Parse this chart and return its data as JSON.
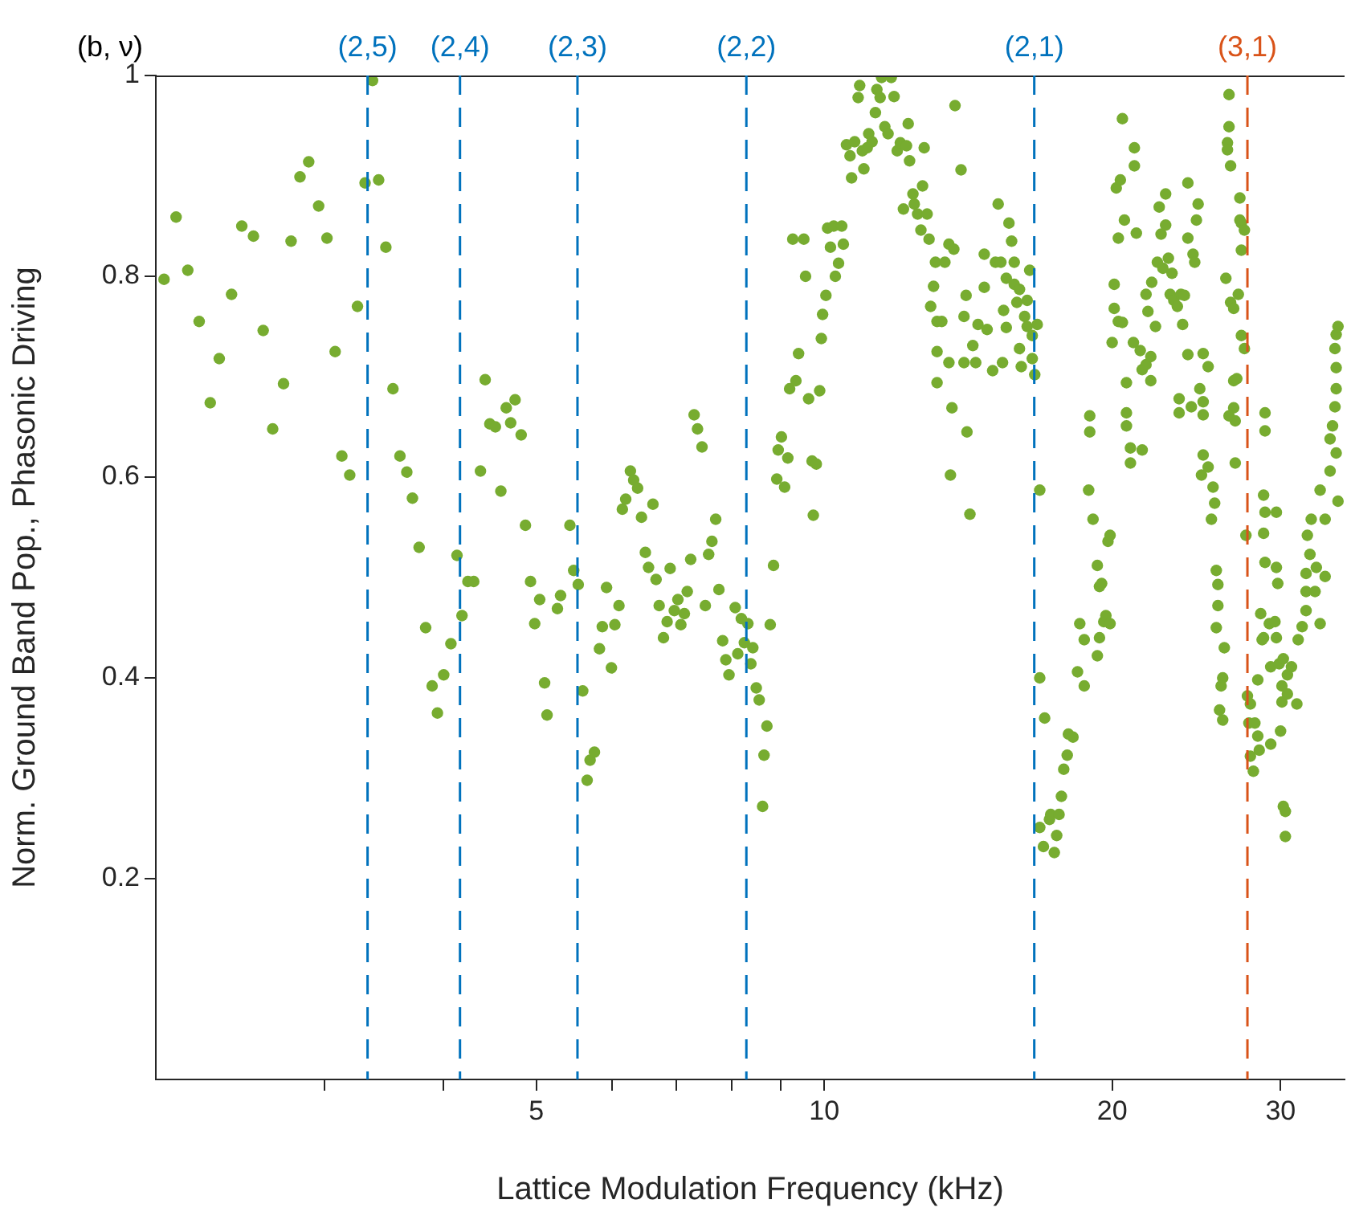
{
  "chart_data": {
    "type": "scatter",
    "xlabel": "Lattice Modulation Frequency (kHz)",
    "ylabel": "Norm. Ground Band Pop., Phasonic Driving",
    "annotations": [
      "(b, ν)",
      {
        "text": "(2,5)",
        "x": 3.33,
        "y": 1
      },
      {
        "text": "(2,4)",
        "x": 4.16,
        "y": 1
      },
      {
        "text": "(2,3)",
        "x": 5.52,
        "y": 1
      },
      {
        "text": "(2,2)",
        "x": 8.29,
        "y": 1
      },
      {
        "text": "(2,1)",
        "x": 16.58,
        "y": 1
      },
      {
        "text": "(3,1)",
        "x": 27.7,
        "y": 1
      }
    ],
    "log": "x",
    "grid": false,
    "legend": false,
    "marker": "circle",
    "color": "#77ac30",
    "xlim": [
      2,
      35
    ],
    "ylim": [
      0,
      1
    ],
    "xticks": [
      {
        "value": 3,
        "label": null
      },
      {
        "value": 4,
        "label": null
      },
      5,
      {
        "value": 6,
        "label": null
      },
      {
        "value": 7,
        "label": null
      },
      {
        "value": 8,
        "label": null
      },
      {
        "value": 9,
        "label": null
      },
      10,
      20,
      30
    ],
    "yticks": [
      0.2,
      0.4,
      0.6,
      0.8,
      1
    ],
    "ref_lines": [
      {
        "axis": "x",
        "value": 3.33,
        "color": "#0072bd",
        "line_style": "dashed"
      },
      {
        "axis": "x",
        "value": 4.16,
        "color": "#0072bd",
        "line_style": "dashed"
      },
      {
        "axis": "x",
        "value": 5.52,
        "color": "#0072bd",
        "line_style": "dashed"
      },
      {
        "axis": "x",
        "value": 8.29,
        "color": "#0072bd",
        "line_style": "dashed"
      },
      {
        "axis": "x",
        "value": 16.58,
        "color": "#0072bd",
        "line_style": "dashed"
      },
      {
        "axis": "x",
        "value": 27.7,
        "color": "#d95319",
        "line_style": "dashed"
      }
    ],
    "x": [
      2.04,
      2.1,
      2.16,
      2.22,
      2.28,
      2.33,
      2.4,
      2.46,
      2.53,
      2.59,
      2.65,
      2.72,
      2.77,
      2.83,
      2.89,
      2.96,
      3.02,
      3.08,
      3.13,
      3.19,
      3.25,
      3.31,
      3.37,
      3.42,
      3.48,
      3.54,
      3.6,
      3.66,
      3.71,
      3.77,
      3.83,
      3.89,
      3.94,
      4.0,
      4.07,
      4.13,
      4.18,
      4.24,
      4.3,
      4.37,
      4.42,
      4.47,
      4.53,
      4.59,
      4.65,
      4.7,
      4.75,
      4.82,
      4.87,
      4.93,
      4.98,
      5.04,
      5.1,
      5.13,
      5.26,
      5.3,
      5.42,
      5.47,
      5.53,
      5.59,
      5.65,
      5.69,
      5.75,
      5.82,
      5.86,
      5.92,
      5.99,
      6.04,
      6.1,
      6.15,
      6.2,
      6.27,
      6.32,
      6.38,
      6.44,
      6.5,
      6.55,
      6.62,
      6.67,
      6.72,
      6.79,
      6.85,
      6.9,
      6.97,
      7.03,
      7.08,
      7.14,
      7.19,
      7.25,
      7.31,
      7.37,
      7.45,
      7.51,
      7.57,
      7.63,
      7.7,
      7.76,
      7.83,
      7.89,
      7.95,
      8.07,
      8.12,
      8.19,
      8.25,
      8.32,
      8.38,
      8.42,
      8.49,
      8.55,
      8.62,
      8.65,
      8.71,
      8.78,
      8.85,
      8.92,
      8.95,
      9.02,
      9.09,
      9.16,
      9.2,
      9.27,
      9.34,
      9.4,
      9.52,
      9.56,
      9.63,
      9.71,
      9.74,
      9.81,
      9.89,
      9.93,
      9.96,
      10.04,
      10.08,
      10.15,
      10.23,
      10.27,
      10.35,
      10.43,
      10.47,
      10.55,
      10.64,
      10.68,
      10.76,
      10.85,
      10.89,
      10.96,
      11.0,
      11.09,
      11.13,
      11.22,
      11.31,
      11.35,
      11.44,
      11.48,
      11.57,
      11.66,
      11.75,
      11.83,
      11.92,
      12.01,
      12.1,
      12.19,
      12.24,
      12.28,
      12.38,
      12.42,
      12.52,
      12.62,
      12.67,
      12.72,
      12.81,
      12.87,
      12.92,
      13.01,
      13.07,
      13.12,
      13.12,
      13.12,
      13.7,
      13.9,
      13.37,
      13.5,
      13.66,
      13.27,
      13.5,
      13.6,
      13.55,
      14.1,
      14.2,
      14.0,
      14.07,
      14.0,
      14.3,
      14.4,
      14.48,
      14.7,
      14.7,
      14.8,
      15.0,
      15.1,
      15.2,
      15.3,
      15.36,
      15.4,
      15.5,
      15.5,
      15.6,
      15.7,
      15.8,
      15.8,
      15.9,
      16.0,
      16.0,
      16.07,
      16.2,
      16.3,
      16.3,
      16.4,
      16.5,
      16.5,
      16.6,
      16.7,
      16.8,
      16.8,
      17.0,
      16.8,
      16.95,
      17.2,
      17.25,
      17.4,
      17.5,
      17.6,
      17.7,
      17.8,
      17.95,
      18.0,
      18.2,
      18.4,
      18.5,
      18.7,
      18.7,
      18.95,
      18.95,
      18.9,
      19.1,
      19.3,
      19.4,
      19.5,
      19.4,
      19.3,
      19.6,
      19.7,
      19.8,
      19.9,
      19.9,
      20.0,
      20.1,
      20.1,
      20.2,
      20.3,
      20.4,
      20.5,
      20.6,
      20.3,
      20.5,
      20.7,
      20.7,
      20.7,
      20.9,
      20.9,
      21.05,
      21.1,
      21.1,
      21.2,
      21.4,
      21.5,
      21.5,
      21.7,
      21.7,
      21.8,
      21.95,
      21.95,
      22.0,
      22.2,
      22.3,
      22.4,
      22.5,
      22.6,
      22.75,
      22.75,
      22.9,
      23.1,
      23.0,
      23.2,
      23.4,
      23.5,
      23.5,
      23.6,
      23.7,
      23.8,
      24.0,
      24.0,
      24.0,
      24.2,
      24.3,
      24.4,
      24.6,
      24.5,
      24.7,
      24.9,
      24.9,
      24.9,
      24.9,
      24.8,
      25.2,
      25.2,
      25.5,
      25.6,
      25.4,
      25.7,
      25.8,
      25.8,
      25.7,
      26.2,
      26.1,
      26.0,
      25.9,
      26.1,
      26.3,
      26.6,
      26.8,
      27.1,
      27.3,
      27.5,
      26.5,
      26.5,
      26.4,
      26.4,
      26.6,
      27.2,
      27.2,
      27.3,
      27.5,
      27.3,
      26.8,
      27.0,
      26.8,
      26.9,
      26.5,
      26.9,
      27.6,
      27.7,
      27.8,
      27.9,
      28.2,
      28.4,
      28.5,
      28.1,
      27.9,
      28.4,
      28.8,
      28.7,
      28.6,
      29.2,
      28.9,
      28.8,
      28.9,
      28.8,
      29.7,
      29.7,
      29.8,
      28.9,
      28.9,
      29.6,
      29.7,
      29.3,
      29.9,
      30.2,
      30.5,
      30.1,
      30.1,
      30.5,
      30.8,
      31.2,
      30.0,
      29.3,
      30.2,
      30.35,
      30.35,
      31.3,
      31.6,
      31.9,
      31.9,
      31.9,
      32.2,
      32.0,
      32.3,
      32.6,
      32.7,
      33.0,
      33.0,
      33.4,
      33.4,
      33.8,
      33.8,
      34.0,
      34.2,
      34.3,
      34.2,
      34.3,
      34.3,
      34.3,
      34.45,
      34.45
    ],
    "values": [
      0.797,
      0.859,
      0.806,
      0.755,
      0.674,
      0.718,
      0.782,
      0.85,
      0.84,
      0.746,
      0.648,
      0.693,
      0.835,
      0.899,
      0.914,
      0.87,
      0.838,
      0.725,
      0.621,
      0.602,
      0.77,
      0.893,
      0.995,
      0.896,
      0.829,
      0.688,
      0.621,
      0.605,
      0.579,
      0.53,
      0.45,
      0.392,
      0.365,
      0.403,
      0.434,
      0.522,
      0.462,
      0.496,
      0.496,
      0.606,
      0.697,
      0.653,
      0.65,
      0.586,
      0.669,
      0.654,
      0.677,
      0.642,
      0.552,
      0.496,
      0.454,
      0.478,
      0.395,
      0.363,
      0.469,
      0.482,
      0.552,
      0.507,
      0.493,
      0.387,
      0.298,
      0.318,
      0.326,
      0.429,
      0.451,
      0.49,
      0.41,
      0.453,
      0.472,
      0.568,
      0.578,
      0.606,
      0.597,
      0.589,
      0.56,
      0.525,
      0.51,
      0.573,
      0.498,
      0.472,
      0.44,
      0.456,
      0.509,
      0.467,
      0.478,
      0.453,
      0.464,
      0.486,
      0.518,
      0.662,
      0.648,
      0.63,
      0.472,
      0.523,
      0.536,
      0.558,
      0.488,
      0.437,
      0.418,
      0.403,
      0.47,
      0.424,
      0.459,
      0.435,
      0.454,
      0.414,
      0.43,
      0.39,
      0.378,
      0.272,
      0.323,
      0.352,
      0.453,
      0.512,
      0.598,
      0.627,
      0.64,
      0.59,
      0.619,
      0.688,
      0.837,
      0.696,
      0.723,
      0.837,
      0.8,
      0.678,
      0.616,
      0.562,
      0.613,
      0.686,
      0.738,
      0.762,
      0.781,
      0.848,
      0.829,
      0.85,
      0.8,
      0.813,
      0.85,
      0.832,
      0.931,
      0.92,
      0.898,
      0.934,
      0.978,
      0.99,
      0.925,
      0.907,
      0.928,
      0.942,
      0.934,
      0.963,
      0.986,
      0.978,
      0.998,
      0.949,
      0.942,
      0.998,
      0.979,
      0.925,
      0.933,
      0.867,
      0.93,
      0.952,
      0.915,
      0.882,
      0.872,
      0.862,
      0.846,
      0.89,
      0.928,
      0.862,
      0.837,
      0.77,
      0.79,
      0.814,
      0.755,
      0.725,
      0.694,
      0.97,
      0.906,
      0.814,
      0.832,
      0.827,
      0.755,
      0.714,
      0.669,
      0.602,
      0.645,
      0.563,
      0.76,
      0.781,
      0.714,
      0.731,
      0.714,
      0.752,
      0.789,
      0.822,
      0.747,
      0.706,
      0.814,
      0.872,
      0.814,
      0.714,
      0.766,
      0.749,
      0.798,
      0.853,
      0.835,
      0.792,
      0.814,
      0.774,
      0.787,
      0.728,
      0.71,
      0.76,
      0.75,
      0.776,
      0.806,
      0.741,
      0.718,
      0.702,
      0.752,
      0.587,
      0.4,
      0.36,
      0.251,
      0.232,
      0.259,
      0.264,
      0.226,
      0.243,
      0.264,
      0.282,
      0.309,
      0.323,
      0.344,
      0.341,
      0.406,
      0.454,
      0.392,
      0.438,
      0.661,
      0.645,
      0.587,
      0.558,
      0.512,
      0.491,
      0.494,
      0.44,
      0.422,
      0.456,
      0.462,
      0.536,
      0.454,
      0.542,
      0.734,
      0.792,
      0.768,
      0.888,
      0.838,
      0.896,
      0.957,
      0.856,
      0.755,
      0.754,
      0.694,
      0.664,
      0.651,
      0.629,
      0.614,
      0.734,
      0.928,
      0.91,
      0.843,
      0.726,
      0.627,
      0.707,
      0.712,
      0.782,
      0.765,
      0.696,
      0.72,
      0.794,
      0.75,
      0.814,
      0.869,
      0.842,
      0.808,
      0.882,
      0.851,
      0.818,
      0.803,
      0.782,
      0.776,
      0.77,
      0.678,
      0.664,
      0.782,
      0.752,
      0.781,
      0.893,
      0.722,
      0.838,
      0.67,
      0.822,
      0.814,
      0.872,
      0.856,
      0.688,
      0.662,
      0.675,
      0.723,
      0.622,
      0.602,
      0.71,
      0.61,
      0.59,
      0.574,
      0.558,
      0.507,
      0.493,
      0.472,
      0.45,
      0.43,
      0.4,
      0.392,
      0.368,
      0.358,
      0.798,
      0.774,
      0.768,
      0.782,
      0.741,
      0.728,
      0.981,
      0.949,
      0.933,
      0.926,
      0.91,
      0.878,
      0.856,
      0.853,
      0.846,
      0.826,
      0.696,
      0.698,
      0.669,
      0.656,
      0.661,
      0.614,
      0.542,
      0.382,
      0.355,
      0.374,
      0.355,
      0.342,
      0.328,
      0.307,
      0.322,
      0.398,
      0.44,
      0.438,
      0.464,
      0.454,
      0.515,
      0.544,
      0.565,
      0.582,
      0.565,
      0.51,
      0.494,
      0.664,
      0.646,
      0.456,
      0.44,
      0.411,
      0.414,
      0.419,
      0.403,
      0.392,
      0.376,
      0.384,
      0.411,
      0.374,
      0.347,
      0.334,
      0.272,
      0.267,
      0.242,
      0.438,
      0.451,
      0.467,
      0.486,
      0.504,
      0.523,
      0.542,
      0.558,
      0.486,
      0.51,
      0.454,
      0.587,
      0.558,
      0.501,
      0.606,
      0.638,
      0.651,
      0.67,
      0.742,
      0.728,
      0.709,
      0.688,
      0.624,
      0.75,
      0.576
    ]
  }
}
